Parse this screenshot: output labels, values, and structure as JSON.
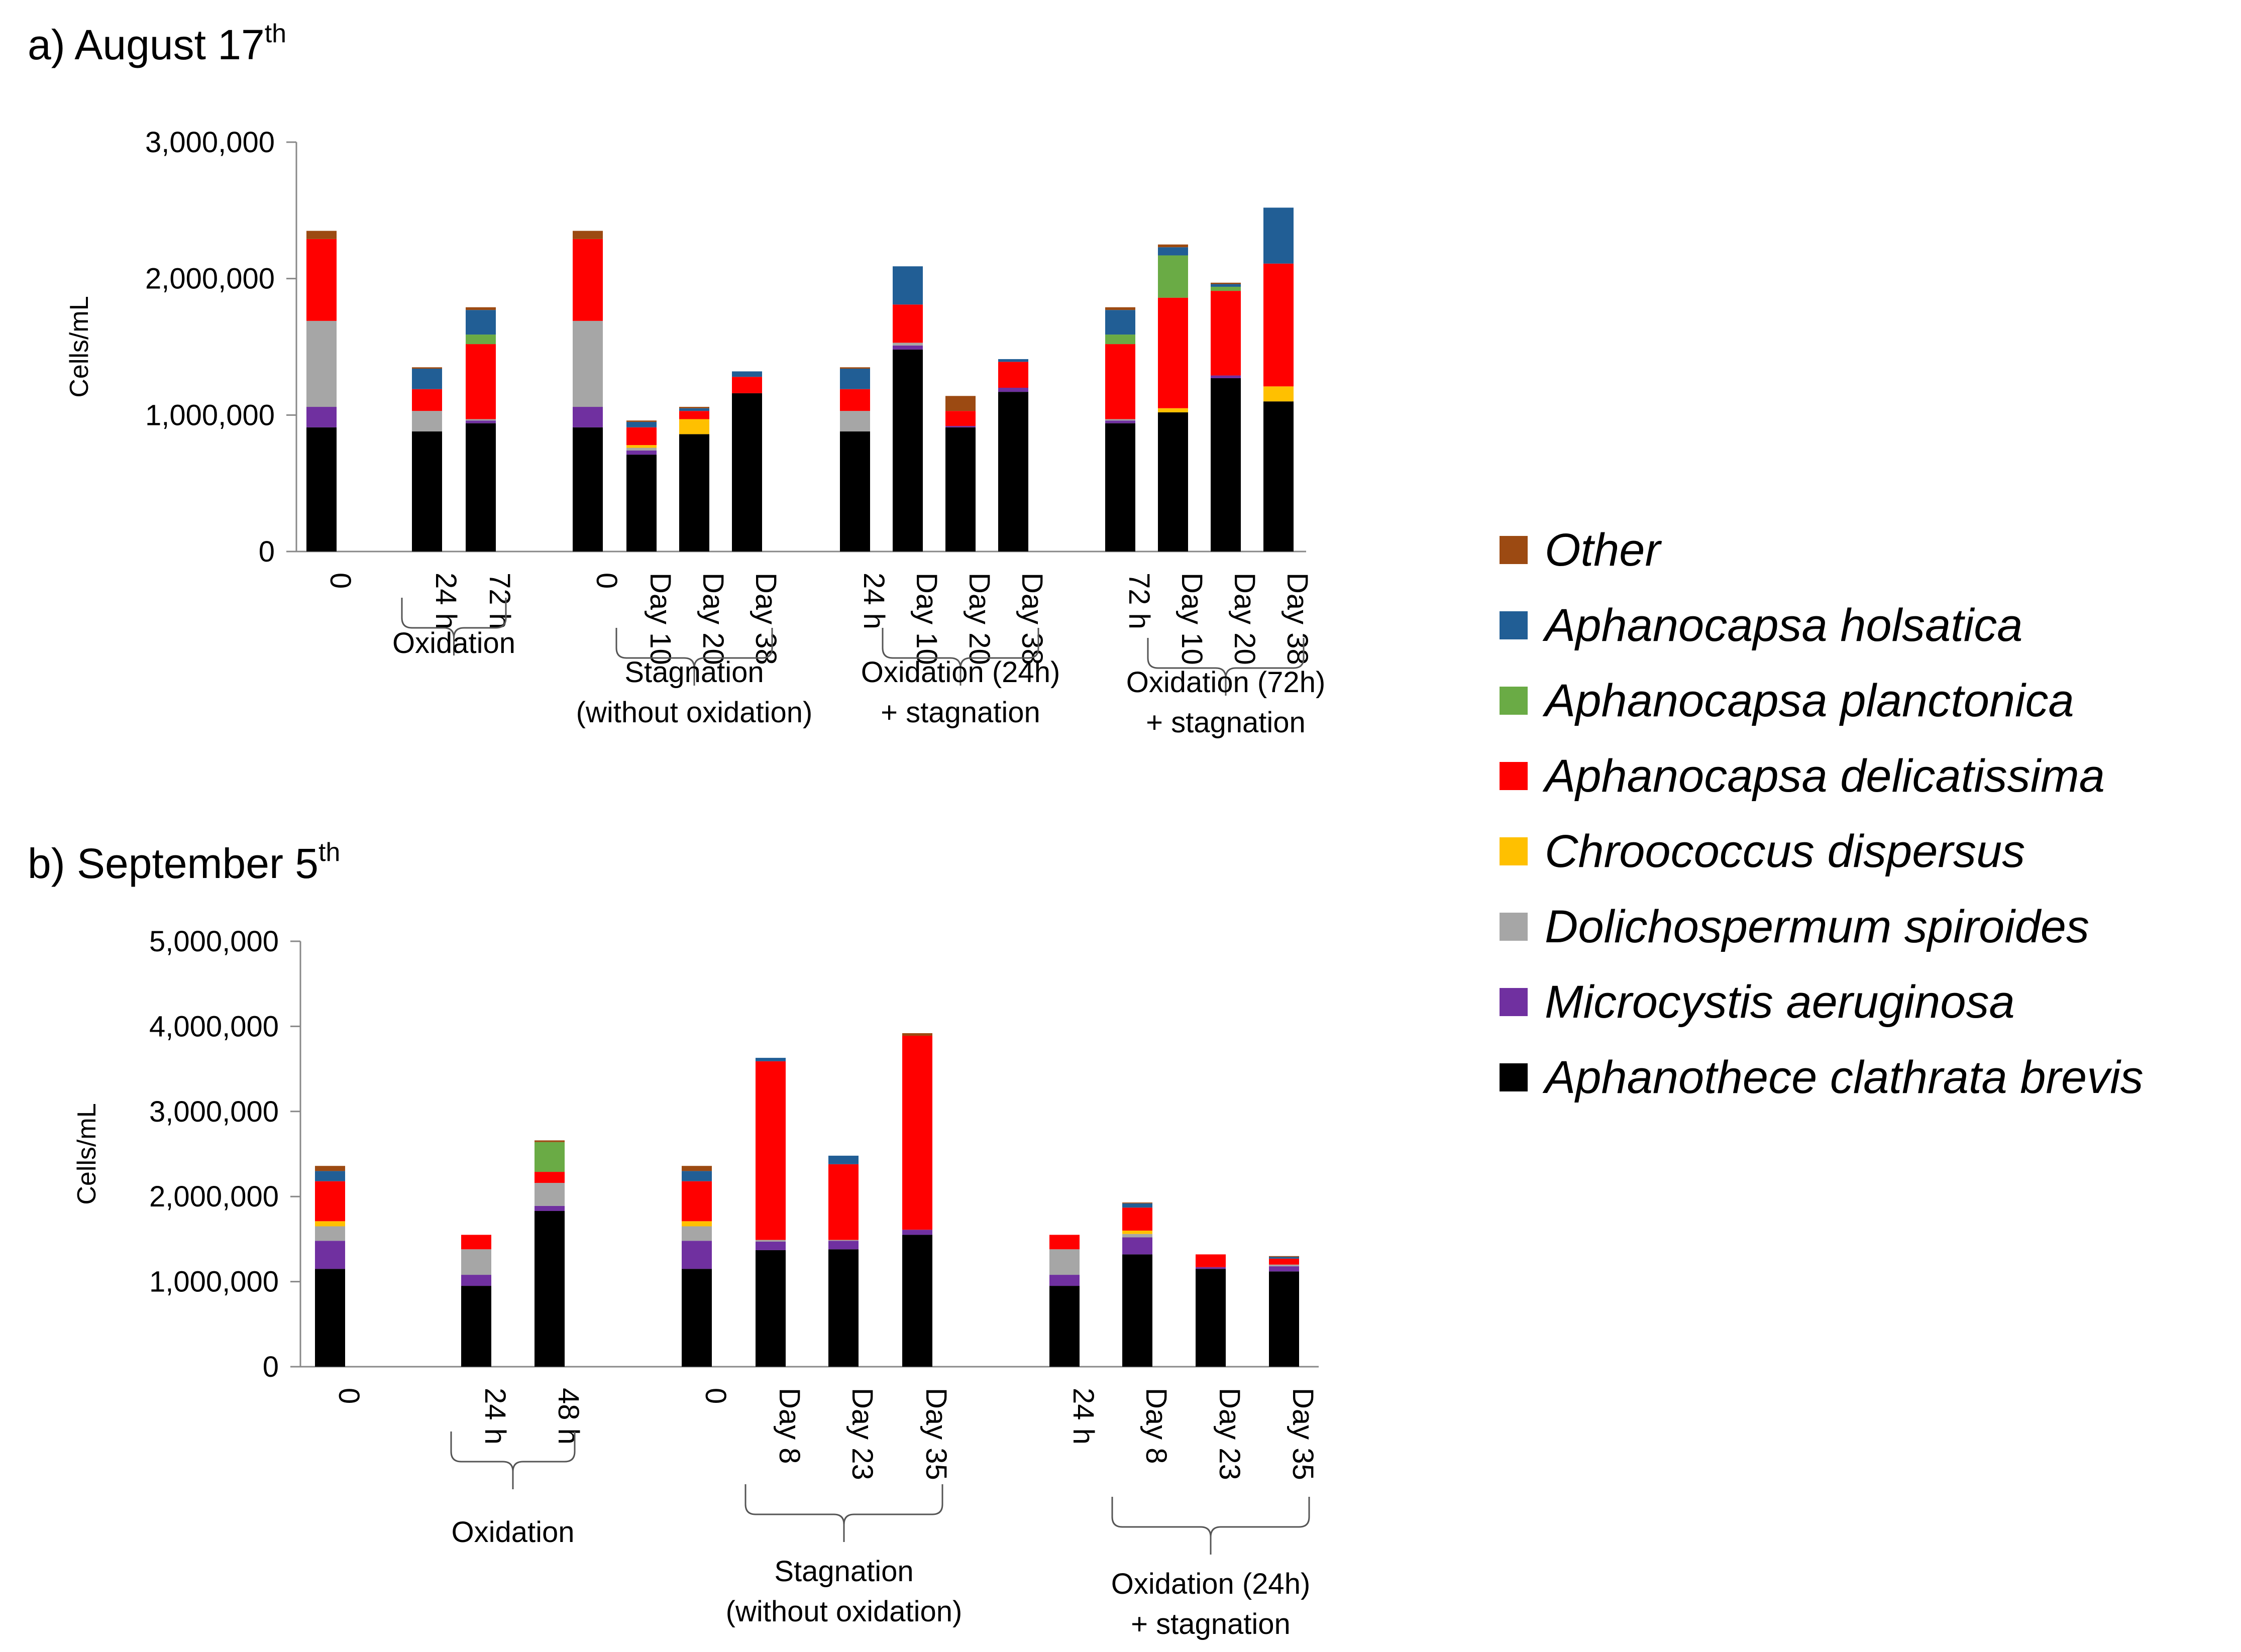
{
  "colors": {
    "Other": "#9C4A12",
    "Aphanocapsa holsatica": "#215E95",
    "Aphanocapsa planctonica": "#6AAB45",
    "Aphanocapsa delicatissima": "#FF0000",
    "Chroococcus dispersus": "#FFC000",
    "Dolichospermum spiroides": "#A6A6A6",
    "Microcystis aeruginosa": "#7030A0",
    "Aphanothece clathrata brevis": "#000000"
  },
  "legend": {
    "items": [
      "Other",
      "Aphanocapsa holsatica",
      "Aphanocapsa planctonica",
      "Aphanocapsa delicatissima",
      "Chroococcus dispersus",
      "Dolichospermum spiroides",
      "Microcystis aeruginosa",
      "Aphanothece clathrata brevis"
    ]
  },
  "chart_data": [
    {
      "type": "bar",
      "stacked": true,
      "title": "a) August 17",
      "title_sup": "th",
      "ylabel": "Cells/mL",
      "ylim": [
        0,
        3000000
      ],
      "yticks": [
        0,
        1000000,
        2000000,
        3000000
      ],
      "ytick_labels": [
        "0",
        "1,000,000",
        "2,000,000",
        "3,000,000"
      ],
      "categories": [
        "0",
        "24 h",
        "72 h",
        "0",
        "Day 10",
        "Day 20",
        "Day 38",
        "24 h",
        "Day 10",
        "Day 20",
        "Day 38",
        "72 h",
        "Day 10",
        "Day 20",
        "Day 38"
      ],
      "series": [
        {
          "name": "Aphanothece clathrata brevis",
          "values": [
            910000,
            880000,
            940000,
            910000,
            710000,
            860000,
            1160000,
            880000,
            1480000,
            910000,
            1170000,
            940000,
            1020000,
            1270000,
            1100000
          ]
        },
        {
          "name": "Microcystis aeruginosa",
          "values": [
            150000,
            0,
            20000,
            150000,
            30000,
            0,
            0,
            0,
            30000,
            10000,
            30000,
            20000,
            0,
            20000,
            0
          ]
        },
        {
          "name": "Dolichospermum spiroides",
          "values": [
            630000,
            150000,
            10000,
            630000,
            20000,
            0,
            0,
            150000,
            20000,
            0,
            0,
            10000,
            0,
            0,
            0
          ]
        },
        {
          "name": "Chroococcus dispersus",
          "values": [
            0,
            0,
            0,
            0,
            20000,
            110000,
            0,
            0,
            0,
            0,
            0,
            0,
            30000,
            0,
            110000
          ]
        },
        {
          "name": "Aphanocapsa delicatissima",
          "values": [
            600000,
            160000,
            550000,
            600000,
            130000,
            60000,
            120000,
            160000,
            280000,
            110000,
            190000,
            550000,
            810000,
            620000,
            900000
          ]
        },
        {
          "name": "Aphanocapsa planctonica",
          "values": [
            0,
            0,
            70000,
            0,
            0,
            0,
            0,
            0,
            0,
            0,
            0,
            70000,
            310000,
            30000,
            0
          ]
        },
        {
          "name": "Aphanocapsa holsatica",
          "values": [
            0,
            150000,
            180000,
            0,
            40000,
            20000,
            40000,
            150000,
            280000,
            0,
            20000,
            180000,
            60000,
            20000,
            410000
          ]
        },
        {
          "name": "Other",
          "values": [
            60000,
            10000,
            20000,
            60000,
            10000,
            10000,
            0,
            10000,
            0,
            110000,
            0,
            20000,
            20000,
            10000,
            0
          ]
        }
      ],
      "groups": [
        {
          "label": "Oxidation",
          "indices": [
            1,
            2
          ]
        },
        {
          "label": "Stagnation (without oxidation)",
          "indices": [
            4,
            5,
            6
          ]
        },
        {
          "label": "Oxidation (24h) + stagnation",
          "indices": [
            8,
            9,
            10
          ]
        },
        {
          "label": "Oxidation (72h) + stagnation",
          "indices": [
            12,
            13,
            14
          ]
        }
      ]
    },
    {
      "type": "bar",
      "stacked": true,
      "title": "b) September 5",
      "title_sup": "th",
      "ylabel": "Cells/mL",
      "ylim": [
        0,
        5000000
      ],
      "yticks": [
        0,
        1000000,
        2000000,
        3000000,
        4000000,
        5000000
      ],
      "ytick_labels": [
        "0",
        "1,000,000",
        "2,000,000",
        "3,000,000",
        "4,000,000",
        "5,000,000"
      ],
      "categories": [
        "0",
        "24 h",
        "48 h",
        "0",
        "Day 8",
        "Day 23",
        "Day 35",
        "24 h",
        "Day 8",
        "Day 23",
        "Day 35"
      ],
      "series": [
        {
          "name": "Aphanothece clathrata brevis",
          "values": [
            1150000,
            950000,
            1830000,
            1150000,
            1370000,
            1380000,
            1550000,
            950000,
            1320000,
            1150000,
            1120000
          ]
        },
        {
          "name": "Microcystis aeruginosa",
          "values": [
            330000,
            130000,
            60000,
            330000,
            100000,
            100000,
            60000,
            130000,
            200000,
            20000,
            60000
          ]
        },
        {
          "name": "Dolichospermum spiroides",
          "values": [
            170000,
            300000,
            270000,
            170000,
            20000,
            10000,
            0,
            300000,
            40000,
            0,
            20000
          ]
        },
        {
          "name": "Chroococcus dispersus",
          "values": [
            60000,
            0,
            0,
            60000,
            0,
            0,
            0,
            0,
            40000,
            0,
            0
          ]
        },
        {
          "name": "Aphanocapsa delicatissima",
          "values": [
            470000,
            170000,
            130000,
            470000,
            2100000,
            890000,
            2280000,
            170000,
            270000,
            150000,
            70000
          ]
        },
        {
          "name": "Aphanocapsa planctonica",
          "values": [
            0,
            0,
            350000,
            0,
            0,
            0,
            0,
            0,
            0,
            0,
            0
          ]
        },
        {
          "name": "Aphanocapsa holsatica",
          "values": [
            120000,
            0,
            0,
            120000,
            40000,
            100000,
            0,
            0,
            50000,
            0,
            20000
          ]
        },
        {
          "name": "Other",
          "values": [
            60000,
            0,
            20000,
            60000,
            0,
            0,
            30000,
            0,
            10000,
            0,
            10000
          ]
        }
      ],
      "groups": [
        {
          "label": "Oxidation",
          "indices": [
            1,
            2
          ]
        },
        {
          "label": "Stagnation (without oxidation)",
          "indices": [
            4,
            5,
            6
          ]
        },
        {
          "label": "Oxidation (24h) + stagnation",
          "indices": [
            8,
            9,
            10
          ]
        }
      ]
    }
  ]
}
